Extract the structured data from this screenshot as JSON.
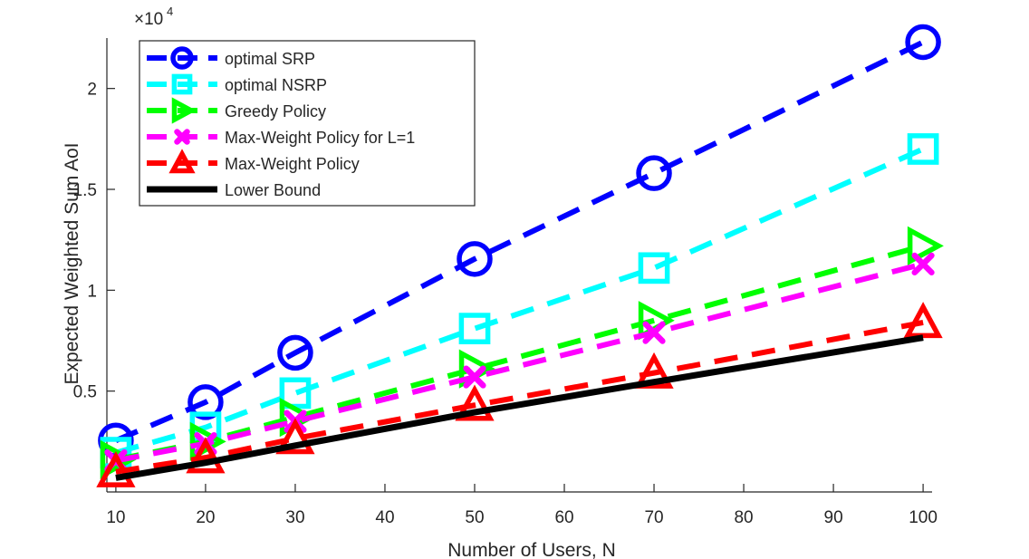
{
  "chart_data": {
    "type": "line",
    "title": "",
    "xlabel": "Number of Users, N",
    "ylabel": "Expected Weighted Sum AoI",
    "y_exponent_label": "×10",
    "y_exponent_power": "4",
    "xlim": [
      9,
      101
    ],
    "ylim": [
      0,
      22500
    ],
    "x_ticks": [
      10,
      20,
      30,
      40,
      50,
      60,
      70,
      80,
      90,
      100
    ],
    "x_tick_labels": [
      "10",
      "20",
      "30",
      "40",
      "50",
      "60",
      "70",
      "80",
      "90",
      "100"
    ],
    "y_ticks": [
      5000,
      10000,
      15000,
      20000
    ],
    "y_tick_labels": [
      "0.5",
      "1",
      "1.5",
      "2"
    ],
    "grid": false,
    "legend_position": "top-left",
    "series": [
      {
        "name": "optimal SRP",
        "color": "#0000ff",
        "marker": "circle",
        "dashed": true,
        "x": [
          10,
          20,
          30,
          50,
          70,
          100
        ],
        "values": [
          2550,
          4450,
          6900,
          11550,
          15800,
          22300
        ]
      },
      {
        "name": "optimal NSRP",
        "color": "#00ffff",
        "marker": "square",
        "dashed": true,
        "x": [
          10,
          20,
          30,
          50,
          70,
          100
        ],
        "values": [
          1950,
          3200,
          4900,
          8100,
          11100,
          17000
        ]
      },
      {
        "name": "Greedy Policy",
        "color": "#00ff00",
        "marker": "triangle-right",
        "dashed": true,
        "x": [
          10,
          20,
          30,
          50,
          70,
          100
        ],
        "values": [
          1600,
          2500,
          3700,
          6100,
          8500,
          12200
        ]
      },
      {
        "name": "Max-Weight Policy for L=1",
        "color": "#ff00ff",
        "marker": "x",
        "dashed": true,
        "x": [
          10,
          20,
          30,
          50,
          70,
          100
        ],
        "values": [
          1550,
          2400,
          3500,
          5700,
          7900,
          11300
        ]
      },
      {
        "name": "Max-Weight Policy",
        "color": "#ff0000",
        "marker": "triangle-up",
        "dashed": true,
        "x": [
          10,
          20,
          30,
          50,
          70,
          100
        ],
        "values": [
          1000,
          1700,
          2650,
          4300,
          5900,
          8400
        ]
      },
      {
        "name": "Lower Bound",
        "color": "#000000",
        "marker": "none",
        "dashed": false,
        "x": [
          10,
          20,
          30,
          50,
          70,
          100
        ],
        "values": [
          700,
          1450,
          2300,
          3950,
          5450,
          7650
        ]
      }
    ]
  }
}
